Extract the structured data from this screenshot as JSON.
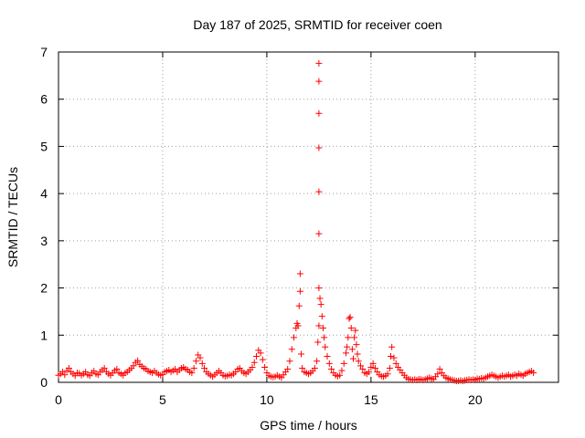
{
  "chart_data": {
    "type": "scatter",
    "title": "Day 187 of 2025, SRMTID for receiver coen",
    "xlabel": "GPS time / hours",
    "ylabel": "SRMTID / TECUs",
    "xlim": [
      0,
      24
    ],
    "ylim": [
      0,
      7
    ],
    "xticks": [
      0,
      5,
      10,
      15,
      20
    ],
    "yticks": [
      0,
      1,
      2,
      3,
      4,
      5,
      6,
      7
    ],
    "grid": true,
    "marker": "+",
    "color": "#ff0000",
    "series": [
      {
        "name": "SRMTID",
        "points": [
          [
            0.0,
            0.15
          ],
          [
            0.1,
            0.18
          ],
          [
            0.2,
            0.22
          ],
          [
            0.3,
            0.16
          ],
          [
            0.4,
            0.25
          ],
          [
            0.5,
            0.3
          ],
          [
            0.6,
            0.22
          ],
          [
            0.7,
            0.18
          ],
          [
            0.8,
            0.14
          ],
          [
            0.9,
            0.2
          ],
          [
            1.0,
            0.19
          ],
          [
            1.1,
            0.15
          ],
          [
            1.2,
            0.18
          ],
          [
            1.3,
            0.22
          ],
          [
            1.4,
            0.16
          ],
          [
            1.5,
            0.14
          ],
          [
            1.6,
            0.2
          ],
          [
            1.7,
            0.24
          ],
          [
            1.8,
            0.18
          ],
          [
            1.9,
            0.16
          ],
          [
            2.0,
            0.22
          ],
          [
            2.1,
            0.26
          ],
          [
            2.2,
            0.3
          ],
          [
            2.3,
            0.22
          ],
          [
            2.4,
            0.18
          ],
          [
            2.5,
            0.15
          ],
          [
            2.6,
            0.2
          ],
          [
            2.7,
            0.25
          ],
          [
            2.8,
            0.28
          ],
          [
            2.9,
            0.2
          ],
          [
            3.0,
            0.18
          ],
          [
            3.1,
            0.15
          ],
          [
            3.2,
            0.2
          ],
          [
            3.3,
            0.22
          ],
          [
            3.4,
            0.26
          ],
          [
            3.5,
            0.3
          ],
          [
            3.6,
            0.35
          ],
          [
            3.7,
            0.42
          ],
          [
            3.8,
            0.46
          ],
          [
            3.9,
            0.38
          ],
          [
            4.0,
            0.34
          ],
          [
            4.1,
            0.3
          ],
          [
            4.2,
            0.28
          ],
          [
            4.3,
            0.24
          ],
          [
            4.4,
            0.22
          ],
          [
            4.5,
            0.2
          ],
          [
            4.6,
            0.24
          ],
          [
            4.7,
            0.2
          ],
          [
            4.8,
            0.17
          ],
          [
            4.9,
            0.15
          ],
          [
            5.0,
            0.17
          ],
          [
            5.1,
            0.22
          ],
          [
            5.2,
            0.24
          ],
          [
            5.3,
            0.26
          ],
          [
            5.4,
            0.22
          ],
          [
            5.5,
            0.25
          ],
          [
            5.6,
            0.28
          ],
          [
            5.7,
            0.22
          ],
          [
            5.8,
            0.26
          ],
          [
            5.9,
            0.3
          ],
          [
            6.0,
            0.32
          ],
          [
            6.1,
            0.28
          ],
          [
            6.2,
            0.26
          ],
          [
            6.3,
            0.22
          ],
          [
            6.4,
            0.2
          ],
          [
            6.5,
            0.3
          ],
          [
            6.6,
            0.45
          ],
          [
            6.7,
            0.58
          ],
          [
            6.8,
            0.52
          ],
          [
            6.9,
            0.4
          ],
          [
            7.0,
            0.3
          ],
          [
            7.1,
            0.22
          ],
          [
            7.2,
            0.18
          ],
          [
            7.3,
            0.15
          ],
          [
            7.4,
            0.12
          ],
          [
            7.5,
            0.16
          ],
          [
            7.6,
            0.2
          ],
          [
            7.7,
            0.24
          ],
          [
            7.8,
            0.2
          ],
          [
            7.9,
            0.15
          ],
          [
            8.0,
            0.13
          ],
          [
            8.1,
            0.14
          ],
          [
            8.2,
            0.16
          ],
          [
            8.3,
            0.15
          ],
          [
            8.4,
            0.18
          ],
          [
            8.5,
            0.22
          ],
          [
            8.6,
            0.28
          ],
          [
            8.7,
            0.3
          ],
          [
            8.8,
            0.24
          ],
          [
            8.9,
            0.2
          ],
          [
            9.0,
            0.18
          ],
          [
            9.1,
            0.22
          ],
          [
            9.2,
            0.26
          ],
          [
            9.3,
            0.32
          ],
          [
            9.4,
            0.42
          ],
          [
            9.5,
            0.55
          ],
          [
            9.6,
            0.68
          ],
          [
            9.7,
            0.62
          ],
          [
            9.8,
            0.48
          ],
          [
            9.9,
            0.32
          ],
          [
            10.0,
            0.2
          ],
          [
            10.1,
            0.14
          ],
          [
            10.2,
            0.12
          ],
          [
            10.3,
            0.11
          ],
          [
            10.4,
            0.12
          ],
          [
            10.5,
            0.15
          ],
          [
            10.6,
            0.12
          ],
          [
            10.7,
            0.1
          ],
          [
            10.8,
            0.16
          ],
          [
            10.9,
            0.22
          ],
          [
            11.0,
            0.28
          ],
          [
            11.1,
            0.45
          ],
          [
            11.2,
            0.7
          ],
          [
            11.3,
            0.95
          ],
          [
            11.4,
            1.15
          ],
          [
            11.45,
            1.25
          ],
          [
            11.5,
            1.2
          ],
          [
            11.55,
            1.62
          ],
          [
            11.6,
            1.93
          ],
          [
            11.6,
            2.3
          ],
          [
            11.65,
            0.6
          ],
          [
            11.7,
            0.3
          ],
          [
            11.8,
            0.22
          ],
          [
            11.9,
            0.2
          ],
          [
            12.0,
            0.18
          ],
          [
            12.1,
            0.2
          ],
          [
            12.2,
            0.24
          ],
          [
            12.3,
            0.3
          ],
          [
            12.4,
            0.45
          ],
          [
            12.45,
            0.85
          ],
          [
            12.5,
            1.2
          ],
          [
            12.5,
            2.0
          ],
          [
            12.5,
            3.15
          ],
          [
            12.5,
            4.04
          ],
          [
            12.5,
            4.97
          ],
          [
            12.5,
            5.7
          ],
          [
            12.5,
            6.38
          ],
          [
            12.5,
            6.76
          ],
          [
            12.55,
            1.78
          ],
          [
            12.6,
            1.65
          ],
          [
            12.65,
            1.4
          ],
          [
            12.7,
            1.15
          ],
          [
            12.75,
            0.95
          ],
          [
            12.8,
            0.75
          ],
          [
            12.9,
            0.55
          ],
          [
            13.0,
            0.4
          ],
          [
            13.1,
            0.28
          ],
          [
            13.2,
            0.2
          ],
          [
            13.3,
            0.15
          ],
          [
            13.4,
            0.13
          ],
          [
            13.5,
            0.15
          ],
          [
            13.6,
            0.25
          ],
          [
            13.7,
            0.4
          ],
          [
            13.8,
            0.62
          ],
          [
            13.85,
            0.75
          ],
          [
            13.9,
            0.95
          ],
          [
            13.95,
            1.35
          ],
          [
            14.0,
            1.38
          ],
          [
            14.05,
            1.15
          ],
          [
            14.1,
            0.7
          ],
          [
            14.15,
            0.5
          ],
          [
            14.2,
            0.95
          ],
          [
            14.25,
            1.1
          ],
          [
            14.3,
            0.8
          ],
          [
            14.35,
            0.6
          ],
          [
            14.4,
            0.45
          ],
          [
            14.5,
            0.35
          ],
          [
            14.6,
            0.28
          ],
          [
            14.7,
            0.2
          ],
          [
            14.8,
            0.18
          ],
          [
            14.9,
            0.22
          ],
          [
            15.0,
            0.32
          ],
          [
            15.1,
            0.4
          ],
          [
            15.2,
            0.3
          ],
          [
            15.3,
            0.22
          ],
          [
            15.4,
            0.16
          ],
          [
            15.5,
            0.13
          ],
          [
            15.6,
            0.12
          ],
          [
            15.7,
            0.14
          ],
          [
            15.8,
            0.18
          ],
          [
            15.9,
            0.3
          ],
          [
            15.95,
            0.55
          ],
          [
            16.0,
            0.75
          ],
          [
            16.1,
            0.52
          ],
          [
            16.2,
            0.4
          ],
          [
            16.3,
            0.32
          ],
          [
            16.4,
            0.26
          ],
          [
            16.5,
            0.2
          ],
          [
            16.6,
            0.15
          ],
          [
            16.7,
            0.1
          ],
          [
            16.8,
            0.07
          ],
          [
            16.9,
            0.06
          ],
          [
            17.0,
            0.05
          ],
          [
            17.1,
            0.06
          ],
          [
            17.2,
            0.05
          ],
          [
            17.3,
            0.07
          ],
          [
            17.4,
            0.06
          ],
          [
            17.5,
            0.05
          ],
          [
            17.6,
            0.06
          ],
          [
            17.7,
            0.08
          ],
          [
            17.8,
            0.1
          ],
          [
            17.9,
            0.08
          ],
          [
            18.0,
            0.06
          ],
          [
            18.1,
            0.12
          ],
          [
            18.2,
            0.18
          ],
          [
            18.3,
            0.28
          ],
          [
            18.4,
            0.2
          ],
          [
            18.5,
            0.14
          ],
          [
            18.6,
            0.1
          ],
          [
            18.7,
            0.08
          ],
          [
            18.8,
            0.06
          ],
          [
            18.9,
            0.05
          ],
          [
            19.0,
            0.04
          ],
          [
            19.1,
            0.03
          ],
          [
            19.2,
            0.03
          ],
          [
            19.3,
            0.04
          ],
          [
            19.4,
            0.03
          ],
          [
            19.5,
            0.04
          ],
          [
            19.6,
            0.05
          ],
          [
            19.7,
            0.06
          ],
          [
            19.8,
            0.05
          ],
          [
            19.9,
            0.06
          ],
          [
            20.0,
            0.05
          ],
          [
            20.1,
            0.08
          ],
          [
            20.2,
            0.07
          ],
          [
            20.3,
            0.09
          ],
          [
            20.4,
            0.08
          ],
          [
            20.5,
            0.1
          ],
          [
            20.6,
            0.12
          ],
          [
            20.7,
            0.14
          ],
          [
            20.8,
            0.16
          ],
          [
            20.9,
            0.14
          ],
          [
            21.0,
            0.12
          ],
          [
            21.1,
            0.1
          ],
          [
            21.2,
            0.12
          ],
          [
            21.3,
            0.14
          ],
          [
            21.4,
            0.12
          ],
          [
            21.5,
            0.14
          ],
          [
            21.6,
            0.16
          ],
          [
            21.7,
            0.12
          ],
          [
            21.8,
            0.14
          ],
          [
            21.9,
            0.16
          ],
          [
            22.0,
            0.14
          ],
          [
            22.1,
            0.18
          ],
          [
            22.2,
            0.16
          ],
          [
            22.3,
            0.14
          ],
          [
            22.4,
            0.18
          ],
          [
            22.5,
            0.2
          ],
          [
            22.6,
            0.22
          ],
          [
            22.7,
            0.24
          ],
          [
            22.8,
            0.2
          ]
        ]
      }
    ]
  }
}
